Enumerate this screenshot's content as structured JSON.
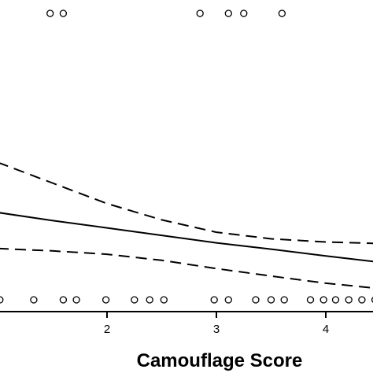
{
  "chart_data": {
    "type": "scatter",
    "title": "",
    "xlabel": "Camouflage Score",
    "ylabel": "",
    "xlim": [
      1.0,
      4.45
    ],
    "ylim": [
      -0.05,
      1.05
    ],
    "x_ticks": [
      2,
      3,
      4
    ],
    "x_tick_labels": [
      "2",
      "3",
      "4"
    ],
    "grid": false,
    "legend": "none",
    "series": [
      {
        "role": "observed-1",
        "marker": "open-circle",
        "color": "#000000",
        "x": [
          1.48,
          1.6,
          2.85,
          3.11,
          3.25,
          3.6
        ],
        "y": [
          1,
          1,
          1,
          1,
          1,
          1
        ]
      },
      {
        "role": "observed-0",
        "marker": "open-circle",
        "color": "#000000",
        "x": [
          1.02,
          1.33,
          1.6,
          1.72,
          1.99,
          2.25,
          2.39,
          2.52,
          2.98,
          3.11,
          3.36,
          3.5,
          3.62,
          3.86,
          3.98,
          4.09,
          4.21,
          4.33,
          4.45
        ],
        "y": [
          0,
          0,
          0,
          0,
          0,
          0,
          0,
          0,
          0,
          0,
          0,
          0,
          0,
          0,
          0,
          0,
          0,
          0,
          0
        ]
      },
      {
        "role": "fitted",
        "line_style": "solid",
        "color": "#000000",
        "x": [
          1.0,
          1.5,
          2.0,
          2.5,
          3.0,
          3.5,
          4.0,
          4.45
        ],
        "y": [
          0.305,
          0.277,
          0.251,
          0.225,
          0.199,
          0.177,
          0.153,
          0.133
        ]
      },
      {
        "role": "upper-band",
        "line_style": "dashed",
        "color": "#000000",
        "x": [
          1.0,
          1.5,
          2.0,
          2.5,
          3.0,
          3.5,
          4.0,
          4.45
        ],
        "y": [
          0.48,
          0.408,
          0.336,
          0.279,
          0.236,
          0.213,
          0.202,
          0.197
        ]
      },
      {
        "role": "lower-band",
        "line_style": "dashed",
        "color": "#000000",
        "x": [
          1.0,
          1.5,
          2.0,
          2.5,
          3.0,
          3.5,
          4.0,
          4.45
        ],
        "y": [
          0.179,
          0.171,
          0.159,
          0.138,
          0.109,
          0.083,
          0.058,
          0.041
        ]
      }
    ]
  }
}
